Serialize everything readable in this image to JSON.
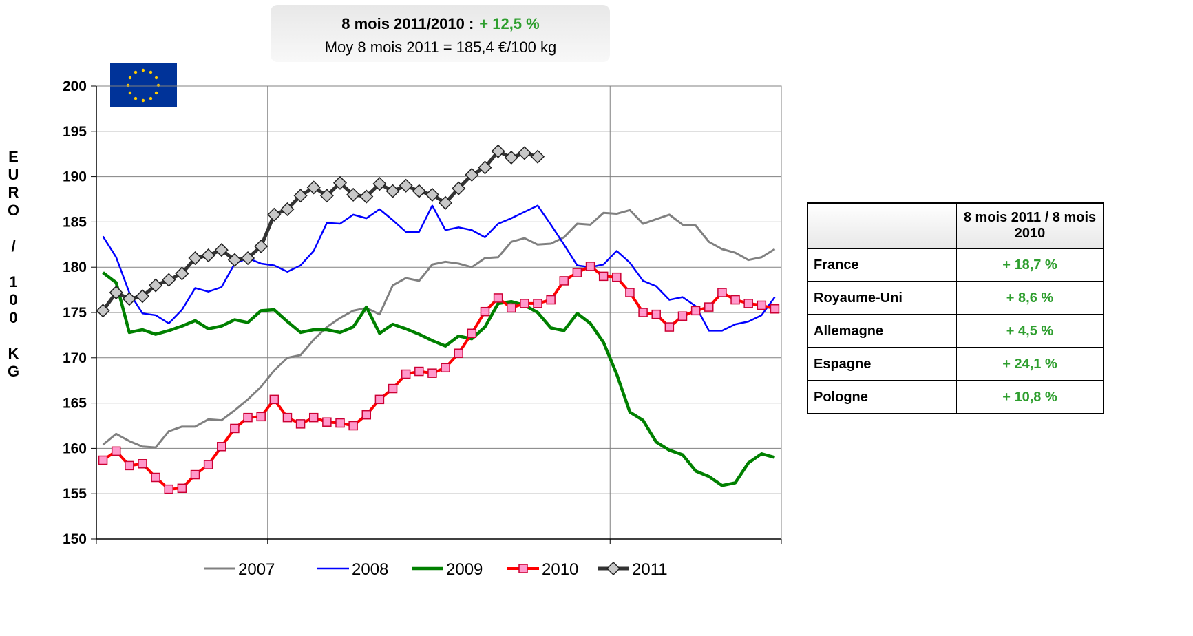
{
  "chart_data": {
    "type": "line",
    "summary_label": "8 mois 2011/2010 :",
    "summary_value": "+ 12,5 %",
    "subtitle": "Moy 8 mois 2011 = 185,4 €/100 kg",
    "y_label": "EURO / 100 KG",
    "categories": [
      null,
      null,
      null,
      null,
      null,
      null,
      null,
      null,
      null,
      null,
      null,
      null,
      null,
      null,
      null,
      null,
      null,
      null,
      null,
      null,
      null,
      null,
      null,
      null,
      null,
      null,
      null,
      null,
      null,
      null,
      null,
      null,
      null,
      null,
      null,
      null,
      null,
      null,
      null,
      null,
      null,
      null,
      null,
      null,
      null,
      null,
      null,
      null,
      null,
      null,
      null,
      null
    ],
    "ylim": [
      150,
      200
    ],
    "yticks": [
      150,
      155,
      160,
      165,
      170,
      175,
      180,
      185,
      190,
      195,
      200
    ],
    "grid": true,
    "series": [
      {
        "name": "2007",
        "color": "#808080",
        "values": [
          160.4,
          161.6,
          160.8,
          160.2,
          160.1,
          161.9,
          162.4,
          162.4,
          163.2,
          163.1,
          164.2,
          165.4,
          166.8,
          168.6,
          170,
          170.3,
          172,
          173.4,
          174.4,
          175.2,
          175.5,
          174.8,
          178,
          178.8,
          178.5,
          180.3,
          180.6,
          180.4,
          180,
          181,
          181.1,
          182.8,
          183.2,
          182.5,
          182.6,
          183.3,
          184.8,
          184.7,
          186,
          185.9,
          186.3,
          184.8,
          185.3,
          185.8,
          184.7,
          184.6,
          182.8,
          182,
          181.6,
          180.8,
          181.1,
          182
        ]
      },
      {
        "name": "2008",
        "color": "#0000ff",
        "values": [
          183.4,
          181.1,
          177.2,
          174.9,
          174.7,
          173.8,
          175.3,
          177.7,
          177.3,
          177.8,
          180.4,
          181,
          180.4,
          180.2,
          179.5,
          180.2,
          181.8,
          184.9,
          184.8,
          185.8,
          185.4,
          186.4,
          185.2,
          183.9,
          183.9,
          186.8,
          184.1,
          184.4,
          184.1,
          183.3,
          184.8,
          185.4,
          186.1,
          186.8,
          184.7,
          182.5,
          180.2,
          180,
          180.3,
          181.8,
          180.5,
          178.5,
          177.9,
          176.4,
          176.7,
          175.7,
          173,
          173,
          173.7,
          174,
          174.7,
          176.7
        ]
      },
      {
        "name": "2009",
        "color": "#008000",
        "values": [
          179.4,
          178.3,
          172.8,
          173.1,
          172.6,
          173,
          173.5,
          174.1,
          173.2,
          173.5,
          174.2,
          173.9,
          175.2,
          175.3,
          174,
          172.8,
          173.1,
          173.1,
          172.8,
          173.4,
          175.6,
          172.7,
          173.7,
          173.2,
          172.6,
          171.9,
          171.3,
          172.4,
          172.1,
          173.4,
          176,
          176.2,
          175.8,
          175,
          173.3,
          173,
          174.9,
          173.8,
          171.7,
          168.2,
          164,
          163.1,
          160.7,
          159.8,
          159.3,
          157.5,
          156.9,
          155.9,
          156.2,
          158.4,
          159.4,
          159
        ]
      },
      {
        "name": "2010",
        "color": "#ff0000",
        "marker": "square",
        "values": [
          158.7,
          159.7,
          158.1,
          158.3,
          156.8,
          155.5,
          155.6,
          157.1,
          158.2,
          160.2,
          162.2,
          163.4,
          163.5,
          165.4,
          163.4,
          162.7,
          163.4,
          162.9,
          162.8,
          162.5,
          163.7,
          165.4,
          166.6,
          168.2,
          168.5,
          168.3,
          168.9,
          170.5,
          172.7,
          175.1,
          176.6,
          175.5,
          176,
          176,
          176.4,
          178.5,
          179.4,
          180.1,
          179,
          178.9,
          177.2,
          175,
          174.8,
          173.4,
          174.6,
          175.2,
          175.6,
          177.2,
          176.4,
          176,
          175.8,
          175.4
        ]
      },
      {
        "name": "2011",
        "color": "#333333",
        "marker": "diamond",
        "values": [
          175.2,
          177.2,
          176.5,
          176.8,
          178,
          178.6,
          179.3,
          181,
          181.3,
          181.9,
          180.8,
          181,
          182.3,
          185.8,
          186.4,
          187.9,
          188.8,
          187.9,
          189.3,
          188,
          187.8,
          189.2,
          188.4,
          189,
          188.4,
          188,
          187.1,
          188.7,
          190.2,
          191,
          192.8,
          192.1,
          192.6,
          192.2,
          null,
          null,
          null,
          null,
          null,
          null,
          null,
          null,
          null,
          null,
          null,
          null,
          null,
          null,
          null,
          null,
          null,
          null
        ]
      }
    ]
  },
  "table": {
    "header": [
      "",
      "8 mois 2011 / 8 mois 2010"
    ],
    "rows": [
      [
        "France",
        "+ 18,7 %"
      ],
      [
        "Royaume-Uni",
        "+ 8,6 %"
      ],
      [
        "Allemagne",
        "+ 4,5 %"
      ],
      [
        "Espagne",
        "+ 24,1 %"
      ],
      [
        "Pologne",
        "+ 10,8 %"
      ]
    ]
  }
}
